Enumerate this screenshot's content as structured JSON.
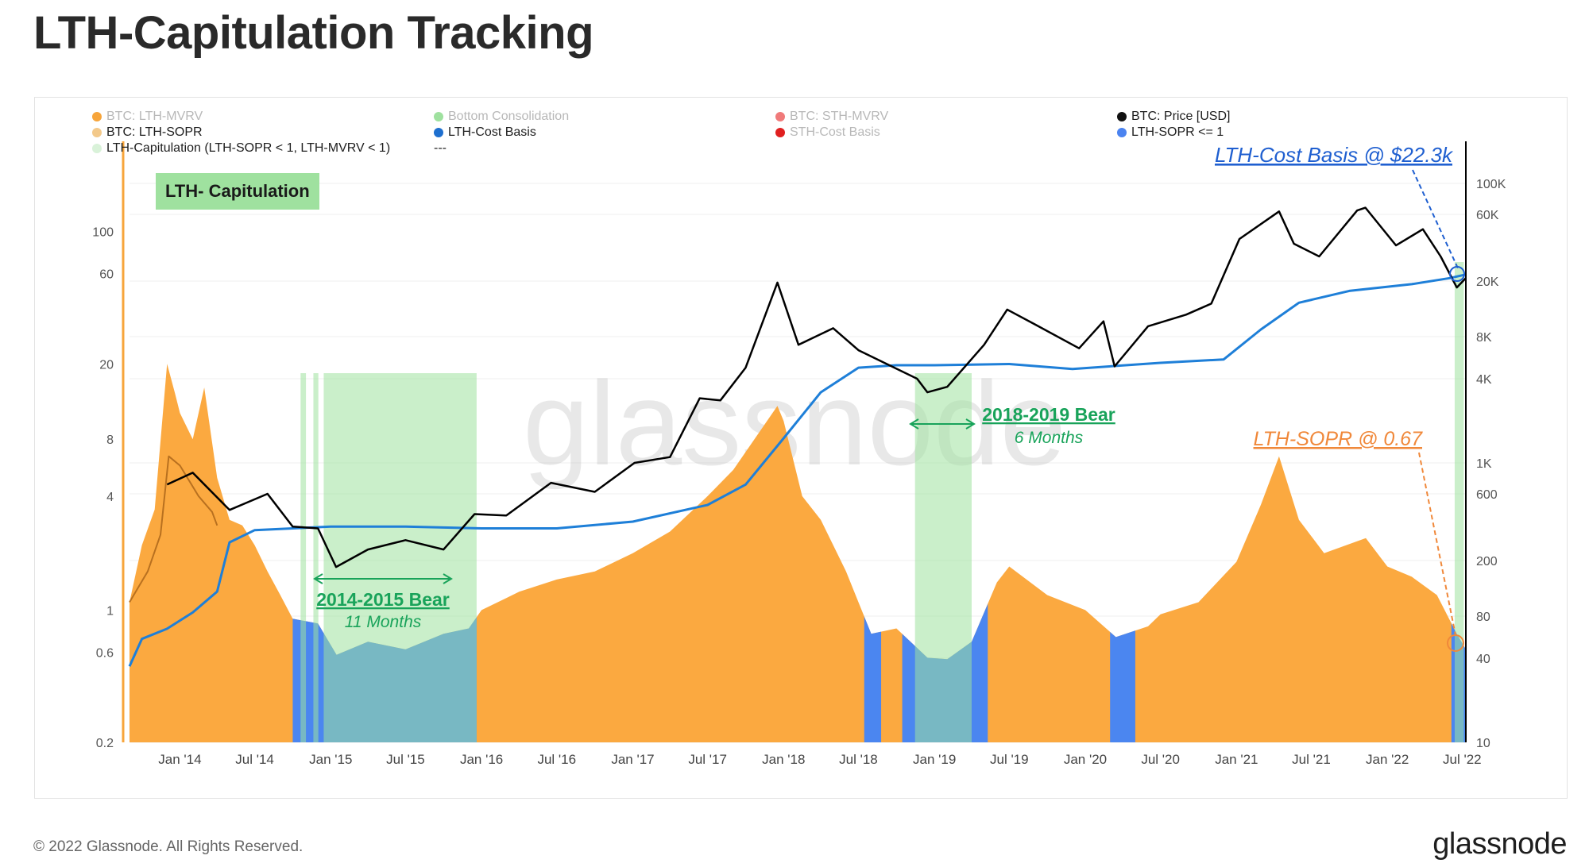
{
  "title": "LTH-Capitulation Tracking",
  "legend": [
    {
      "label": "BTC: LTH-MVRV",
      "color": "#f7a53b",
      "state": "faded"
    },
    {
      "label": "Bottom Consolidation",
      "color": "#9fe19f",
      "state": "faded"
    },
    {
      "label": "BTC: STH-MVRV",
      "color": "#f07a7a",
      "state": "faded"
    },
    {
      "label": "BTC: Price [USD]",
      "color": "#111111",
      "state": "dark"
    },
    {
      "label": "BTC: LTH-SOPR",
      "color": "#f3c98a",
      "state": "dark"
    },
    {
      "label": "LTH-Cost Basis",
      "color": "#1e6fcf",
      "state": "dark"
    },
    {
      "label": "STH-Cost Basis",
      "color": "#e02020",
      "state": "faded"
    },
    {
      "label": "LTH-SOPR <= 1",
      "color": "#4b83f0",
      "state": "dark"
    },
    {
      "label": "LTH-Capitulation (LTH-SOPR < 1, LTH-MVRV < 1)",
      "color": "#d9f2d9",
      "state": "dark"
    },
    {
      "label": "---",
      "color": "",
      "state": "dark"
    }
  ],
  "badge": "LTH- Capitulation",
  "footer": {
    "copyright": "© 2022 Glassnode. All Rights Reserved.",
    "logo": "glassnode"
  },
  "watermark": "glassnode",
  "colors": {
    "mvrv": "#fba940",
    "sopr_le_1": "#4b86f0",
    "overlap": "#3a95a8",
    "capitulation": "#9fe19f",
    "price": "#000000",
    "cost_basis": "#1e7fd8",
    "bear_text": "#19a35a",
    "lth_cb_text": "#1f5fd0",
    "sopr_text": "#f0883a",
    "axis_left": "#f7a53b"
  },
  "chart_data": {
    "type": "area",
    "x_ticks": [
      "Jan '14",
      "Jul '14",
      "Jan '15",
      "Jul '15",
      "Jan '16",
      "Jul '16",
      "Jan '17",
      "Jul '17",
      "Jan '18",
      "Jul '18",
      "Jan '19",
      "Jul '19",
      "Jan '20",
      "Jul '20",
      "Jan '21",
      "Jul '21",
      "Jan '22",
      "Jul '22"
    ],
    "x_tick_dates": [
      "2014-01-01",
      "2014-07-01",
      "2015-01-01",
      "2015-07-01",
      "2016-01-01",
      "2016-07-01",
      "2017-01-01",
      "2017-07-01",
      "2018-01-01",
      "2018-07-01",
      "2019-01-01",
      "2019-07-01",
      "2020-01-01",
      "2020-07-01",
      "2021-01-01",
      "2021-07-01",
      "2022-01-01",
      "2022-07-01"
    ],
    "x_range": [
      "2013-09-01",
      "2022-07-10"
    ],
    "left_axis": {
      "ticks": [
        "100",
        "60",
        "20",
        "8",
        "4",
        "1",
        "0.6",
        "0.2"
      ],
      "scale": "log",
      "range": [
        0.2,
        300
      ]
    },
    "right_axis": {
      "ticks": [
        "100K",
        "60K",
        "20K",
        "8K",
        "4K",
        "1K",
        "600",
        "200",
        "80",
        "40",
        "10"
      ],
      "scale": "log",
      "range": [
        10,
        200000
      ]
    },
    "series": [
      {
        "name": "BTC: LTH-MVRV",
        "axis": "left",
        "style": "area",
        "points": [
          [
            "2013-09-01",
            1.1
          ],
          [
            "2013-10-01",
            2.2
          ],
          [
            "2013-11-01",
            3.4
          ],
          [
            "2013-12-01",
            20
          ],
          [
            "2013-12-20",
            14
          ],
          [
            "2014-01-01",
            11
          ],
          [
            "2014-02-01",
            8
          ],
          [
            "2014-03-01",
            15
          ],
          [
            "2014-04-01",
            5
          ],
          [
            "2014-05-01",
            3
          ],
          [
            "2014-06-01",
            2.8
          ],
          [
            "2014-07-01",
            2.2
          ],
          [
            "2014-08-01",
            1.6
          ],
          [
            "2014-09-01",
            1.2
          ],
          [
            "2014-10-01",
            0.9
          ],
          [
            "2014-12-01",
            0.85
          ],
          [
            "2015-01-15",
            0.58
          ],
          [
            "2015-04-01",
            0.68
          ],
          [
            "2015-07-01",
            0.62
          ],
          [
            "2015-10-01",
            0.75
          ],
          [
            "2015-12-01",
            0.8
          ],
          [
            "2016-01-01",
            1.0
          ],
          [
            "2016-04-01",
            1.25
          ],
          [
            "2016-07-01",
            1.45
          ],
          [
            "2016-10-01",
            1.6
          ],
          [
            "2017-01-01",
            2.0
          ],
          [
            "2017-04-01",
            2.6
          ],
          [
            "2017-07-01",
            4.0
          ],
          [
            "2017-09-01",
            5.5
          ],
          [
            "2017-12-17",
            12
          ],
          [
            "2018-01-01",
            10
          ],
          [
            "2018-02-15",
            4.0
          ],
          [
            "2018-04-01",
            3.0
          ],
          [
            "2018-06-01",
            1.6
          ],
          [
            "2018-07-01",
            1.1
          ],
          [
            "2018-08-01",
            0.75
          ],
          [
            "2018-10-01",
            0.8
          ],
          [
            "2018-12-15",
            0.56
          ],
          [
            "2019-02-01",
            0.55
          ],
          [
            "2019-04-01",
            0.68
          ],
          [
            "2019-06-01",
            1.4
          ],
          [
            "2019-07-01",
            1.7
          ],
          [
            "2019-10-01",
            1.2
          ],
          [
            "2020-01-01",
            1.0
          ],
          [
            "2020-03-15",
            0.72
          ],
          [
            "2020-06-01",
            0.82
          ],
          [
            "2020-07-01",
            0.95
          ],
          [
            "2020-10-01",
            1.1
          ],
          [
            "2021-01-01",
            1.8
          ],
          [
            "2021-03-01",
            3.6
          ],
          [
            "2021-04-14",
            6.5
          ],
          [
            "2021-06-01",
            3.0
          ],
          [
            "2021-08-01",
            2.0
          ],
          [
            "2021-11-10",
            2.4
          ],
          [
            "2022-01-01",
            1.7
          ],
          [
            "2022-03-01",
            1.5
          ],
          [
            "2022-05-01",
            1.2
          ],
          [
            "2022-06-18",
            0.75
          ],
          [
            "2022-07-10",
            0.62
          ]
        ]
      },
      {
        "name": "BTC: LTH-SOPR",
        "axis": "left",
        "style": "line",
        "points": [
          [
            "2013-09-01",
            1.1
          ],
          [
            "2013-10-15",
            1.6
          ],
          [
            "2013-11-15",
            2.5
          ],
          [
            "2013-12-05",
            6.5
          ],
          [
            "2014-01-01",
            5.8
          ],
          [
            "2014-02-15",
            4.0
          ],
          [
            "2014-03-20",
            3.3
          ],
          [
            "2014-04-01",
            2.8
          ]
        ]
      },
      {
        "name": "BTC: Price [USD]",
        "axis": "right",
        "style": "line",
        "points": [
          [
            "2013-12-01",
            700
          ],
          [
            "2014-02-01",
            850
          ],
          [
            "2014-05-01",
            460
          ],
          [
            "2014-08-01",
            600
          ],
          [
            "2014-10-01",
            350
          ],
          [
            "2014-12-01",
            340
          ],
          [
            "2015-01-14",
            180
          ],
          [
            "2015-04-01",
            240
          ],
          [
            "2015-07-01",
            280
          ],
          [
            "2015-10-01",
            240
          ],
          [
            "2015-12-15",
            430
          ],
          [
            "2016-03-01",
            420
          ],
          [
            "2016-06-17",
            720
          ],
          [
            "2016-10-01",
            620
          ],
          [
            "2017-01-05",
            1000
          ],
          [
            "2017-04-01",
            1100
          ],
          [
            "2017-06-12",
            2900
          ],
          [
            "2017-08-01",
            2800
          ],
          [
            "2017-10-01",
            4800
          ],
          [
            "2017-12-17",
            19500
          ],
          [
            "2018-02-06",
            7000
          ],
          [
            "2018-05-01",
            9200
          ],
          [
            "2018-07-01",
            6400
          ],
          [
            "2018-11-20",
            4000
          ],
          [
            "2018-12-15",
            3200
          ],
          [
            "2019-02-01",
            3500
          ],
          [
            "2019-05-01",
            7000
          ],
          [
            "2019-06-26",
            12500
          ],
          [
            "2019-09-01",
            9800
          ],
          [
            "2019-12-17",
            6600
          ],
          [
            "2020-02-14",
            10300
          ],
          [
            "2020-03-12",
            4900
          ],
          [
            "2020-06-01",
            9500
          ],
          [
            "2020-09-01",
            11500
          ],
          [
            "2020-11-01",
            13800
          ],
          [
            "2021-01-08",
            40000
          ],
          [
            "2021-04-14",
            63000
          ],
          [
            "2021-05-20",
            37000
          ],
          [
            "2021-07-20",
            30000
          ],
          [
            "2021-10-20",
            64000
          ],
          [
            "2021-11-09",
            67000
          ],
          [
            "2022-01-22",
            36000
          ],
          [
            "2022-03-28",
            47000
          ],
          [
            "2022-05-10",
            30000
          ],
          [
            "2022-06-18",
            18000
          ],
          [
            "2022-07-10",
            21000
          ]
        ]
      },
      {
        "name": "LTH-Cost Basis",
        "axis": "right",
        "style": "line",
        "points": [
          [
            "2013-09-01",
            35
          ],
          [
            "2013-10-01",
            55
          ],
          [
            "2013-12-01",
            65
          ],
          [
            "2014-02-01",
            85
          ],
          [
            "2014-04-01",
            120
          ],
          [
            "2014-05-01",
            270
          ],
          [
            "2014-07-01",
            330
          ],
          [
            "2014-10-01",
            340
          ],
          [
            "2015-01-01",
            350
          ],
          [
            "2015-07-01",
            350
          ],
          [
            "2016-01-01",
            340
          ],
          [
            "2016-07-01",
            340
          ],
          [
            "2017-01-01",
            380
          ],
          [
            "2017-07-01",
            500
          ],
          [
            "2017-10-01",
            700
          ],
          [
            "2018-01-01",
            1500
          ],
          [
            "2018-04-01",
            3200
          ],
          [
            "2018-07-01",
            4800
          ],
          [
            "2018-10-01",
            5000
          ],
          [
            "2019-01-01",
            5000
          ],
          [
            "2019-07-01",
            5100
          ],
          [
            "2019-12-01",
            4700
          ],
          [
            "2020-07-01",
            5200
          ],
          [
            "2020-12-01",
            5500
          ],
          [
            "2021-03-01",
            9000
          ],
          [
            "2021-06-01",
            14000
          ],
          [
            "2021-10-01",
            17000
          ],
          [
            "2022-03-01",
            19000
          ],
          [
            "2022-06-01",
            21000
          ],
          [
            "2022-07-10",
            22300
          ]
        ]
      }
    ],
    "blue_regions": [
      [
        "2014-10-01",
        "2015-12-20"
      ],
      [
        "2018-07-15",
        "2018-08-25"
      ],
      [
        "2018-10-15",
        "2019-05-10"
      ],
      [
        "2020-03-01",
        "2020-05-01"
      ],
      [
        "2022-06-05",
        "2022-07-10"
      ]
    ],
    "capitulation_regions": [
      [
        "2014-10-20",
        "2014-11-02"
      ],
      [
        "2014-11-20",
        "2014-12-02"
      ],
      [
        "2014-12-15",
        "2015-12-20"
      ],
      [
        "2018-11-15",
        "2019-04-01"
      ],
      [
        "2022-06-13",
        "2022-07-05"
      ]
    ],
    "annotations": [
      {
        "text": "2014-2015 Bear",
        "sub": "11 Months",
        "type": "bear"
      },
      {
        "text": "2018-2019 Bear",
        "sub": "6 Months",
        "type": "bear"
      },
      {
        "text": "LTH-Cost Basis @ $22.3k",
        "type": "callout-blue"
      },
      {
        "text": "LTH-SOPR @ 0.67",
        "type": "callout-orange"
      }
    ]
  }
}
